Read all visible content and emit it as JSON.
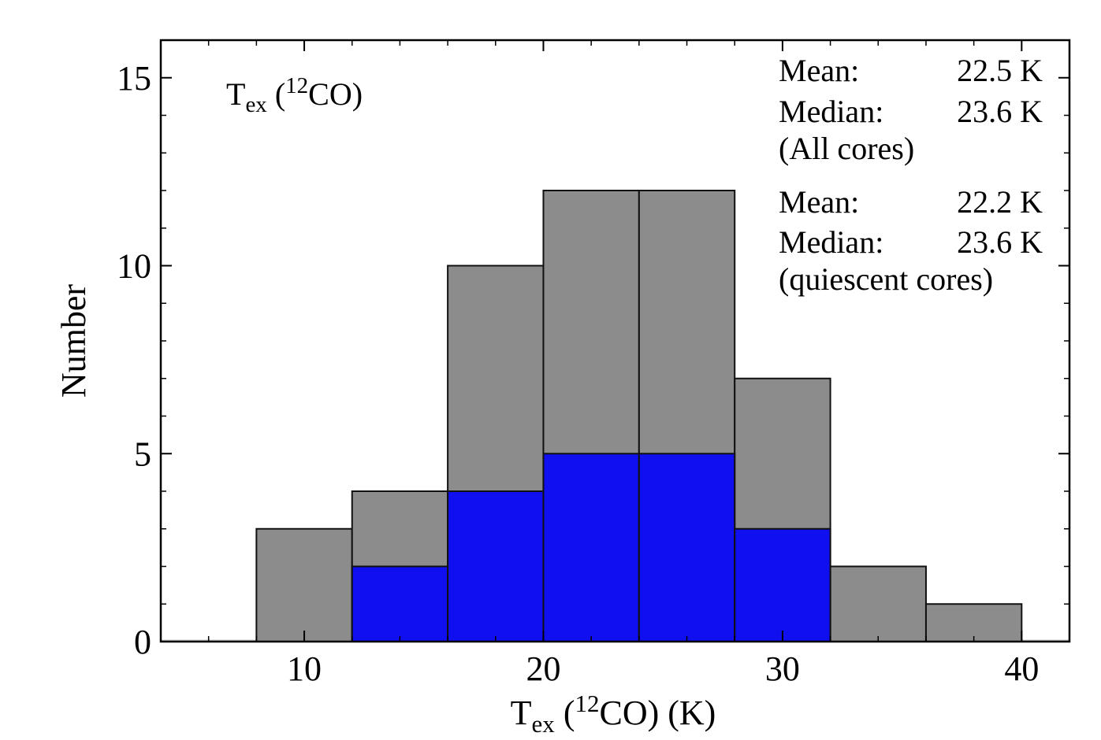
{
  "chart_data": {
    "type": "bar",
    "subtype": "stacked-histogram",
    "panel_label": {
      "main": "T",
      "sub": "ex",
      "open": " (",
      "sup": "12",
      "close": "CO)"
    },
    "xlabel": {
      "main": "T",
      "sub": "ex",
      "open": " (",
      "sup": "12",
      "close": "CO) (K)"
    },
    "ylabel": "Number",
    "xlim": [
      4,
      42
    ],
    "ylim": [
      0,
      16
    ],
    "xticks": [
      10,
      20,
      30,
      40
    ],
    "yticks": [
      0,
      5,
      10,
      15
    ],
    "bin_edges": [
      8,
      12,
      16,
      20,
      24,
      28,
      32,
      36,
      40
    ],
    "series": [
      {
        "key": "all",
        "values": [
          3,
          4,
          10,
          12,
          12,
          7,
          2,
          1
        ],
        "color": "#8c8c8c"
      },
      {
        "key": "quiescent",
        "values": [
          0,
          2,
          4,
          5,
          5,
          3,
          0,
          0
        ],
        "color": "#0f0ff0"
      }
    ],
    "annotations": {
      "all": {
        "color": "#000000",
        "mean_label": "Mean:",
        "mean_value": "22.5 K",
        "median_label": "Median:",
        "median_value": "23.6 K",
        "group": "(All cores)"
      },
      "quiescent": {
        "color": "#0f0ff0",
        "mean_label": "Mean:",
        "mean_value": "22.2 K",
        "median_label": "Median:",
        "median_value": "23.6 K",
        "group": "(quiescent cores)"
      }
    },
    "grid": false,
    "legend": "none"
  }
}
